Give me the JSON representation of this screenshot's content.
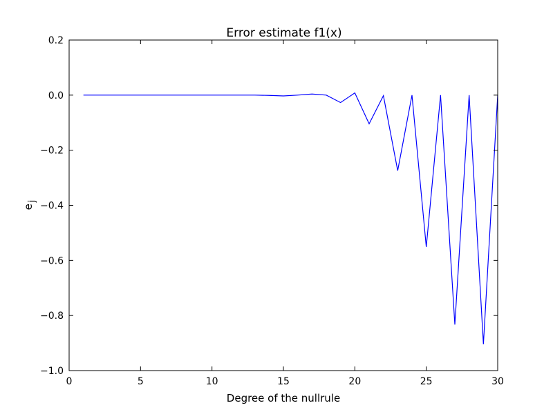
{
  "chart_data": {
    "type": "line",
    "title": "Error estimate f1(x)",
    "xlabel": "Degree of the nullrule",
    "ylabel": "e_j",
    "xlim": [
      0,
      30
    ],
    "ylim": [
      -1.0,
      0.2
    ],
    "xticks": [
      0,
      5,
      10,
      15,
      20,
      25,
      30
    ],
    "xtick_labels": [
      "0",
      "5",
      "10",
      "15",
      "20",
      "25",
      "30"
    ],
    "yticks": [
      0.2,
      0.0,
      -0.2,
      -0.4,
      -0.6,
      -0.8,
      -1.0
    ],
    "ytick_labels": [
      "0.2",
      "0.0",
      "−0.2",
      "−0.4",
      "−0.6",
      "−0.8",
      "−1.0"
    ],
    "grid": false,
    "series": [
      {
        "color": "#0000ff",
        "x": [
          1,
          2,
          3,
          4,
          5,
          6,
          7,
          8,
          9,
          10,
          11,
          12,
          13,
          14,
          15,
          16,
          17,
          18,
          19,
          20,
          21,
          22,
          23,
          24,
          25,
          26,
          27,
          28,
          29,
          30
        ],
        "y": [
          0,
          0,
          0,
          0,
          0,
          0,
          0,
          0,
          0,
          0,
          0,
          0,
          0,
          -0.001,
          -0.003,
          0,
          0.004,
          0,
          -0.027,
          0.008,
          -0.104,
          -0.002,
          -0.274,
          0,
          -0.551,
          0,
          -0.833,
          0,
          -0.904,
          0
        ]
      }
    ]
  }
}
